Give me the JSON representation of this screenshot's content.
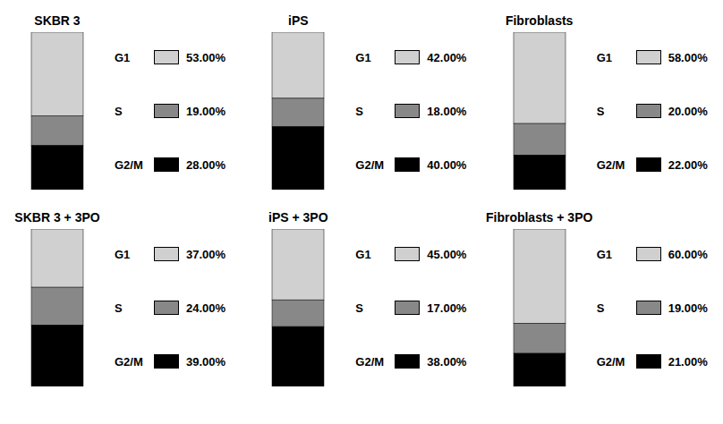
{
  "chart_data": [
    {
      "type": "bar",
      "title": "SKBR 3",
      "categories": [
        null
      ],
      "stacked": true,
      "ylim": [
        0,
        100
      ],
      "tick_labels": false,
      "legend": "right",
      "data_labels": true,
      "series": [
        {
          "name": "G1",
          "color": "#d0d0d0",
          "values": [
            53.0
          ],
          "value_labels": [
            "53.00%"
          ]
        },
        {
          "name": "S",
          "color": "#888888",
          "values": [
            19.0
          ],
          "value_labels": [
            "19.00%"
          ]
        },
        {
          "name": "G2/M",
          "color": "#000000",
          "values": [
            28.0
          ],
          "value_labels": [
            "28.00%"
          ]
        }
      ]
    },
    {
      "type": "bar",
      "title": "iPS",
      "categories": [
        null
      ],
      "stacked": true,
      "ylim": [
        0,
        100
      ],
      "tick_labels": false,
      "legend": "right",
      "data_labels": true,
      "series": [
        {
          "name": "G1",
          "color": "#d0d0d0",
          "values": [
            42.0
          ],
          "value_labels": [
            "42.00%"
          ]
        },
        {
          "name": "S",
          "color": "#888888",
          "values": [
            18.0
          ],
          "value_labels": [
            "18.00%"
          ]
        },
        {
          "name": "G2/M",
          "color": "#000000",
          "values": [
            40.0
          ],
          "value_labels": [
            "40.00%"
          ]
        }
      ]
    },
    {
      "type": "bar",
      "title": "Fibroblasts",
      "categories": [
        null
      ],
      "stacked": true,
      "ylim": [
        0,
        100
      ],
      "tick_labels": false,
      "legend": "right",
      "data_labels": true,
      "series": [
        {
          "name": "G1",
          "color": "#d0d0d0",
          "values": [
            58.0
          ],
          "value_labels": [
            "58.00%"
          ]
        },
        {
          "name": "S",
          "color": "#888888",
          "values": [
            20.0
          ],
          "value_labels": [
            "20.00%"
          ]
        },
        {
          "name": "G2/M",
          "color": "#000000",
          "values": [
            22.0
          ],
          "value_labels": [
            "22.00%"
          ]
        }
      ]
    },
    {
      "type": "bar",
      "title": "SKBR 3 + 3PO",
      "categories": [
        null
      ],
      "stacked": true,
      "ylim": [
        0,
        100
      ],
      "tick_labels": false,
      "legend": "right",
      "data_labels": true,
      "series": [
        {
          "name": "G1",
          "color": "#d0d0d0",
          "values": [
            37.0
          ],
          "value_labels": [
            "37.00%"
          ]
        },
        {
          "name": "S",
          "color": "#888888",
          "values": [
            24.0
          ],
          "value_labels": [
            "24.00%"
          ]
        },
        {
          "name": "G2/M",
          "color": "#000000",
          "values": [
            39.0
          ],
          "value_labels": [
            "39.00%"
          ]
        }
      ]
    },
    {
      "type": "bar",
      "title": "iPS + 3PO",
      "categories": [
        null
      ],
      "stacked": true,
      "ylim": [
        0,
        100
      ],
      "tick_labels": false,
      "legend": "right",
      "data_labels": true,
      "series": [
        {
          "name": "G1",
          "color": "#d0d0d0",
          "values": [
            45.0
          ],
          "value_labels": [
            "45.00%"
          ]
        },
        {
          "name": "S",
          "color": "#888888",
          "values": [
            17.0
          ],
          "value_labels": [
            "17.00%"
          ]
        },
        {
          "name": "G2/M",
          "color": "#000000",
          "values": [
            38.0
          ],
          "value_labels": [
            "38.00%"
          ]
        }
      ]
    },
    {
      "type": "bar",
      "title": "Fibroblasts + 3PO",
      "categories": [
        null
      ],
      "stacked": true,
      "ylim": [
        0,
        100
      ],
      "tick_labels": false,
      "legend": "right",
      "data_labels": true,
      "series": [
        {
          "name": "G1",
          "color": "#d0d0d0",
          "values": [
            60.0
          ],
          "value_labels": [
            "60.00%"
          ]
        },
        {
          "name": "S",
          "color": "#888888",
          "values": [
            19.0
          ],
          "value_labels": [
            "19.00%"
          ]
        },
        {
          "name": "G2/M",
          "color": "#000000",
          "values": [
            21.0
          ],
          "value_labels": [
            "21.00%"
          ]
        }
      ]
    }
  ]
}
